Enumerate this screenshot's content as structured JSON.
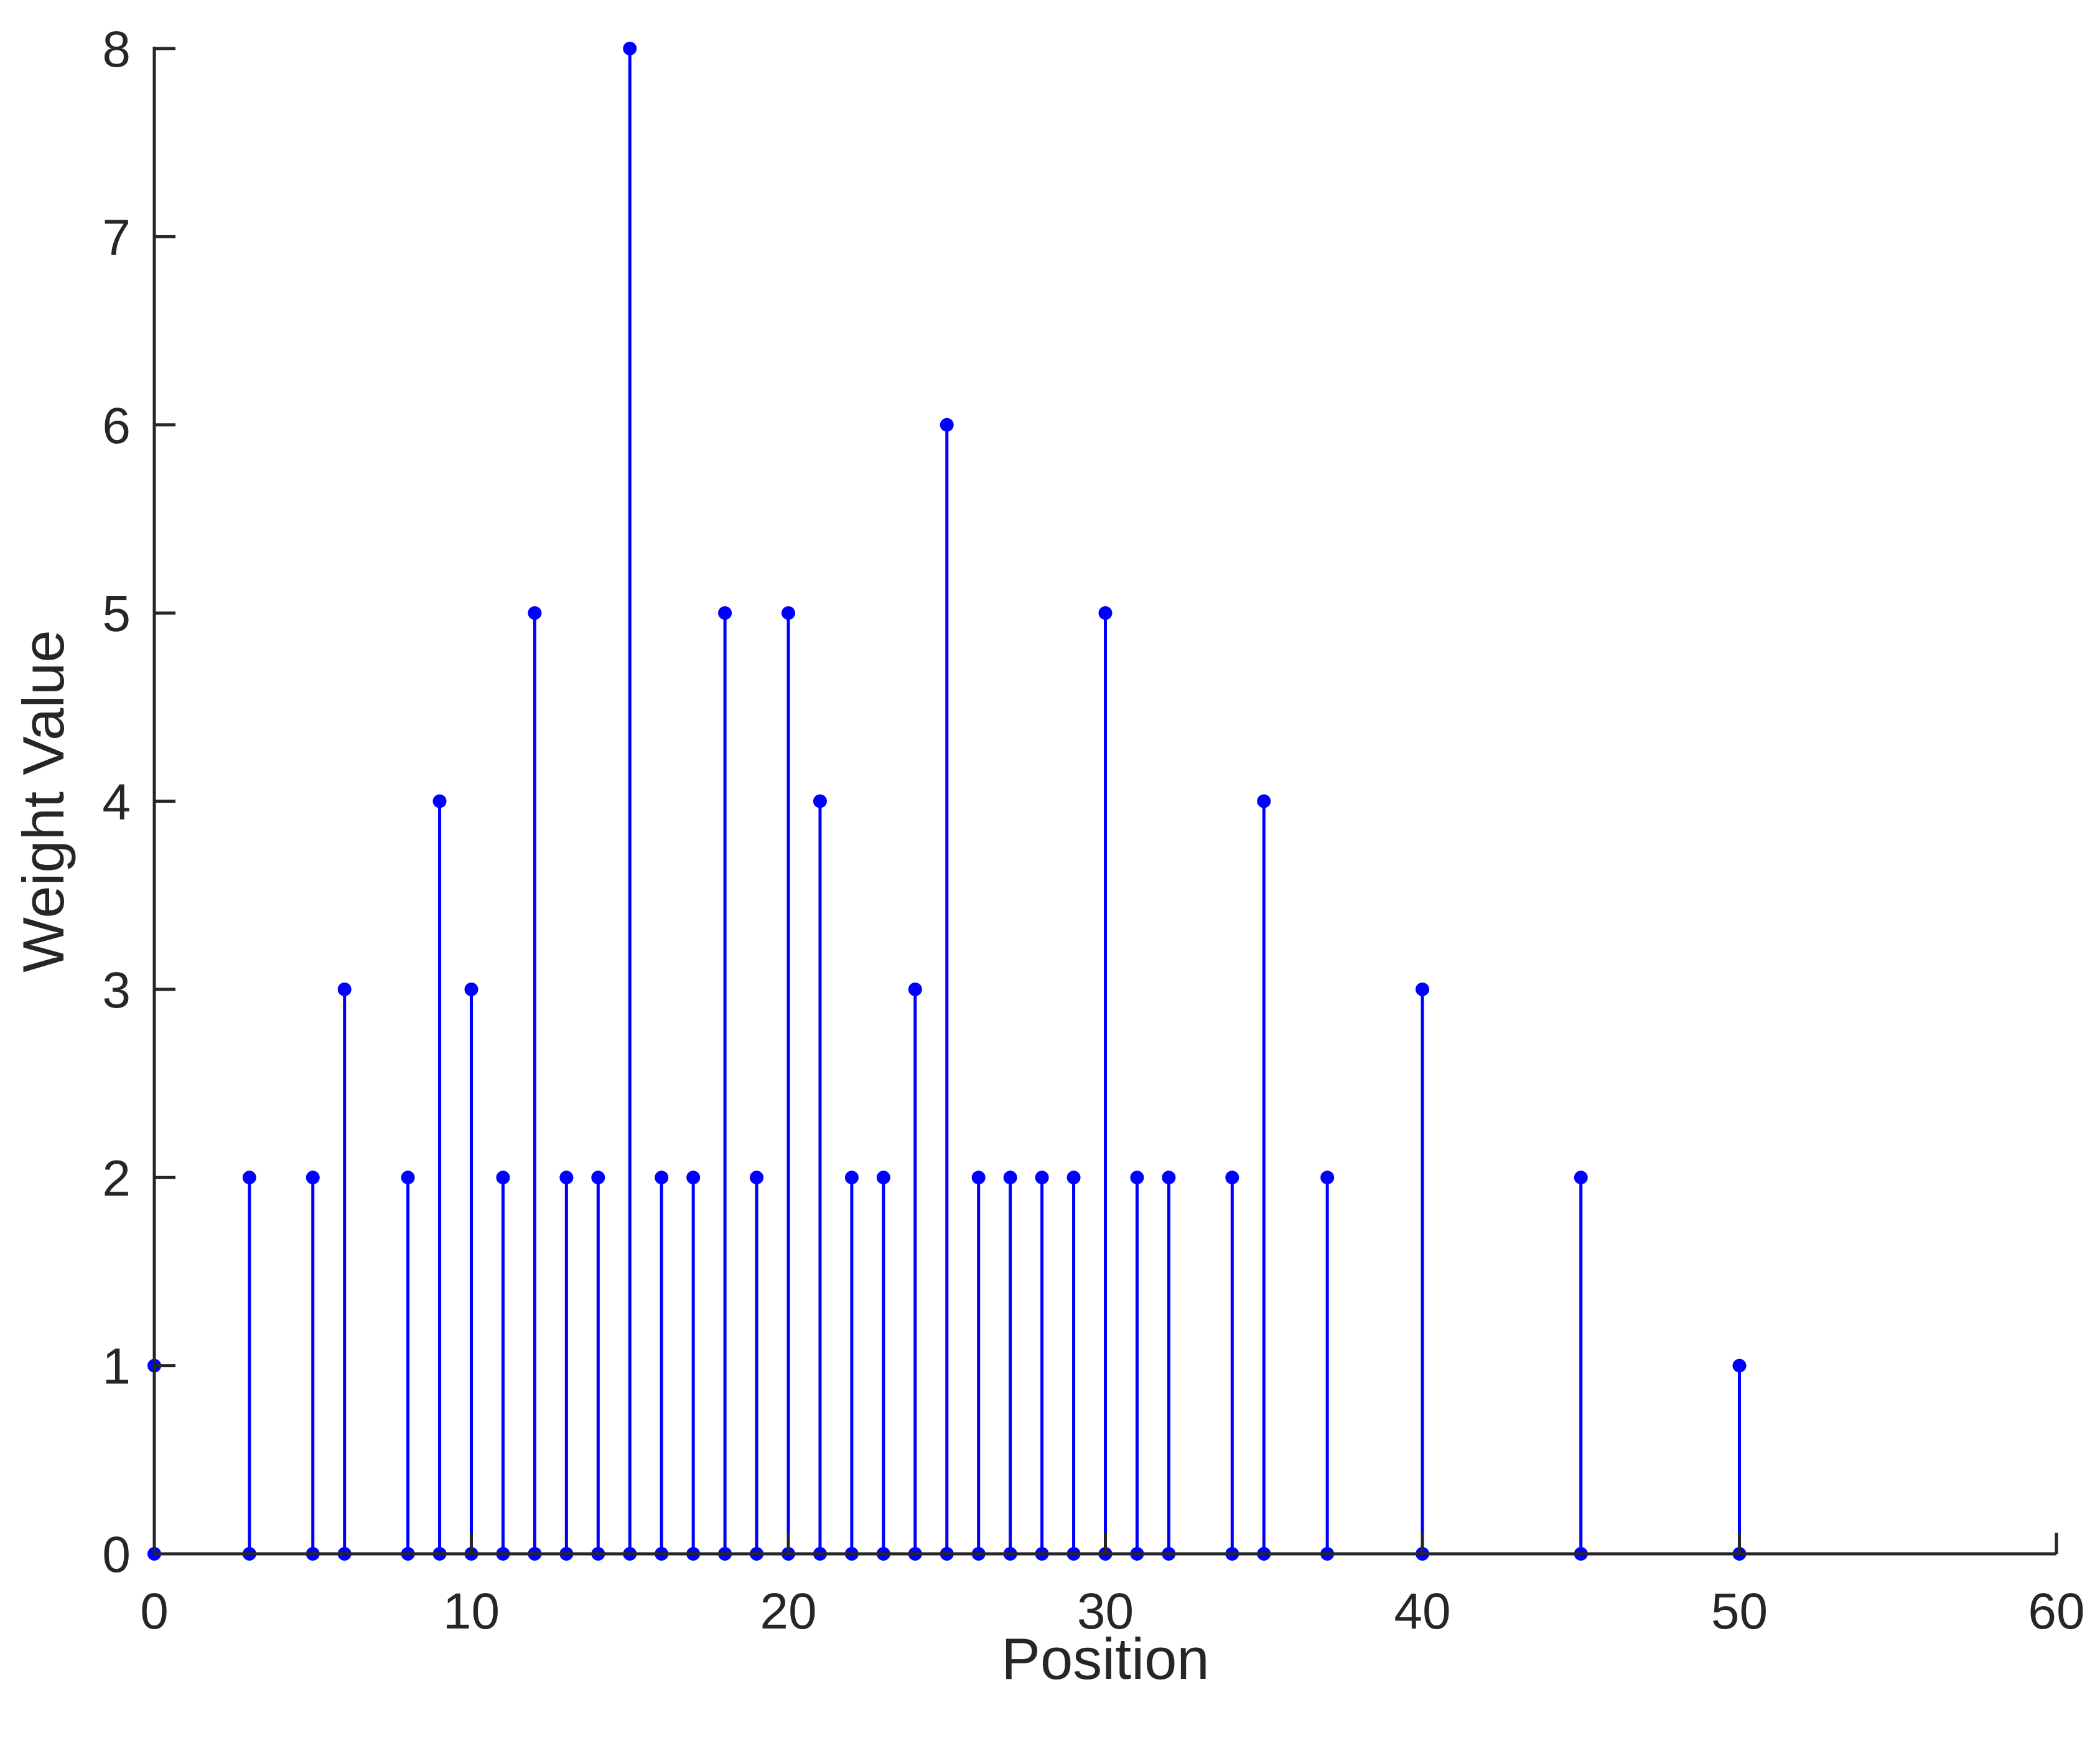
{
  "chart_data": {
    "type": "stem",
    "title": "",
    "xlabel": "Position",
    "ylabel": "Weight Value",
    "xlim": [
      0,
      60
    ],
    "ylim": [
      0,
      8
    ],
    "xticks": [
      0,
      10,
      20,
      30,
      40,
      50,
      60
    ],
    "yticks": [
      0,
      1,
      2,
      3,
      4,
      5,
      6,
      7,
      8
    ],
    "grid": false,
    "color": "#0000ff",
    "axis_color": "#262626",
    "series": [
      {
        "x": [
          0,
          3,
          5,
          6,
          8,
          9,
          10,
          11,
          12,
          13,
          14,
          15,
          16,
          17,
          18,
          19,
          20,
          21,
          22,
          23,
          24,
          25,
          26,
          27,
          28,
          29,
          30,
          31,
          32,
          34,
          35,
          37,
          40,
          45,
          50
        ],
        "y": [
          1,
          2,
          2,
          3,
          2,
          4,
          3,
          2,
          5,
          2,
          2,
          8,
          2,
          2,
          5,
          2,
          5,
          4,
          2,
          2,
          3,
          6,
          2,
          2,
          2,
          2,
          5,
          2,
          2,
          2,
          4,
          2,
          3,
          2,
          1
        ]
      }
    ]
  }
}
